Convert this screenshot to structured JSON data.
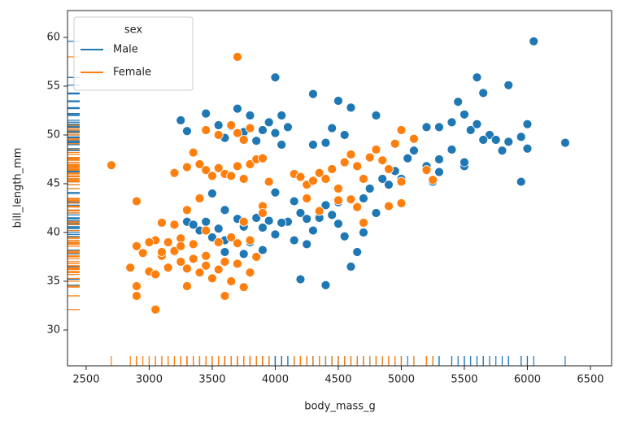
{
  "chart_data": {
    "type": "scatter",
    "x_label": "body_mass_g",
    "y_label": "bill_length_mm",
    "xlim": [
      2352,
      6668
    ],
    "ylim": [
      26.33,
      62.75
    ],
    "xticks": [
      2500,
      3000,
      3500,
      4000,
      4500,
      5000,
      5500,
      6000,
      6500
    ],
    "yticks": [
      30,
      35,
      40,
      45,
      50,
      55,
      60
    ],
    "grid": false,
    "rug": true,
    "legend_title": "sex",
    "legend_position": "upper left",
    "series": [
      {
        "name": "Male",
        "color": "#1f77b4",
        "x": [
          6050,
          6300,
          5600,
          5650,
          5850,
          4000,
          4300,
          4500,
          4600,
          3700,
          3450,
          3250,
          3550,
          3650,
          3800,
          3950,
          4050,
          4100,
          3900,
          4000,
          4300,
          4400,
          4450,
          4550,
          4800,
          3300,
          3600,
          3750,
          3850,
          4050,
          5200,
          5300,
          5400,
          5500,
          5450,
          5550,
          5600,
          5700,
          5750,
          5800,
          5850,
          5950,
          6000,
          6000,
          5950,
          5500,
          5300,
          5200,
          5050,
          5100,
          5400,
          5500,
          5650,
          5300,
          5000,
          4950,
          5250,
          4900,
          3700,
          3750,
          3800,
          3850,
          3900,
          3950,
          4000,
          4050,
          4100,
          4150,
          4200,
          4250,
          4300,
          4350,
          4400,
          4450,
          4500,
          4550,
          4600,
          4650,
          4700,
          4200,
          4400,
          4150,
          4000,
          3450,
          3550,
          3600,
          3500,
          3400,
          3300,
          3750,
          3600,
          3900,
          3500,
          3350,
          3600,
          4050,
          4250,
          4500,
          4750,
          4800,
          4850,
          4700
        ],
        "y": [
          59.6,
          49.2,
          55.9,
          54.3,
          55.1,
          55.9,
          54.2,
          53.5,
          52.8,
          52.7,
          52.2,
          51.5,
          51.0,
          50.9,
          52.0,
          51.3,
          52.0,
          50.8,
          50.5,
          50.2,
          49.0,
          49.2,
          50.7,
          50.0,
          52.0,
          50.4,
          49.7,
          50.3,
          49.4,
          49.0,
          50.8,
          50.8,
          51.3,
          52.1,
          53.4,
          50.5,
          51.1,
          50.0,
          49.5,
          48.4,
          49.3,
          49.8,
          51.1,
          48.6,
          45.2,
          46.8,
          46.2,
          46.8,
          47.6,
          48.4,
          48.5,
          47.2,
          49.5,
          47.5,
          45.5,
          46.3,
          45.2,
          44.9,
          41.4,
          40.6,
          39.0,
          41.5,
          40.5,
          41.2,
          39.8,
          41.0,
          41.1,
          43.2,
          42.0,
          38.8,
          40.2,
          41.5,
          42.8,
          41.8,
          43.1,
          39.6,
          36.5,
          38.0,
          40.0,
          35.2,
          34.6,
          39.2,
          44.1,
          41.1,
          40.4,
          39.2,
          39.5,
          40.2,
          41.1,
          37.8,
          38.0,
          38.2,
          44.0,
          40.8,
          42.3,
          41.0,
          41.4,
          40.9,
          44.5,
          42.0,
          45.5,
          43.5
        ]
      },
      {
        "name": "Female",
        "color": "#ff7f0e",
        "x": [
          3700,
          2700,
          2900,
          3450,
          3550,
          3650,
          3700,
          3750,
          3800,
          3350,
          3300,
          3200,
          3400,
          3450,
          3500,
          3550,
          3600,
          3650,
          3700,
          3750,
          3800,
          3850,
          3900,
          3950,
          4150,
          4200,
          4250,
          4300,
          4350,
          4400,
          4450,
          4500,
          4550,
          4600,
          4650,
          4700,
          4750,
          4800,
          4850,
          4900,
          4950,
          5000,
          5100,
          5200,
          5250,
          5000,
          4900,
          5000,
          4700,
          4650,
          4600,
          4500,
          4350,
          4250,
          3900,
          3400,
          3100,
          3150,
          3050,
          3000,
          3050,
          3100,
          3150,
          3200,
          3250,
          3300,
          3350,
          3400,
          3450,
          3500,
          3550,
          3600,
          3650,
          3700,
          3750,
          3800,
          3850,
          3300,
          3600,
          3050,
          2900,
          2900,
          2850,
          2900,
          2950,
          3000,
          3100,
          3200,
          3250,
          3350,
          3450,
          3550,
          3650,
          3700,
          3800,
          3900,
          3750,
          3300,
          3450,
          3250
        ],
        "y": [
          58.0,
          46.9,
          43.2,
          50.5,
          50.0,
          51.0,
          50.2,
          49.5,
          50.7,
          48.2,
          46.7,
          46.1,
          47.0,
          46.4,
          45.8,
          46.6,
          46.0,
          45.8,
          46.8,
          45.5,
          47.0,
          47.5,
          47.6,
          45.2,
          46.0,
          45.7,
          44.9,
          45.3,
          46.1,
          45.5,
          46.5,
          44.5,
          47.2,
          48.0,
          46.8,
          45.5,
          47.7,
          48.5,
          47.4,
          46.5,
          49.1,
          50.5,
          49.6,
          46.4,
          45.4,
          45.2,
          42.7,
          43.0,
          41.0,
          42.6,
          43.4,
          43.3,
          42.2,
          43.5,
          42.7,
          43.5,
          41.0,
          39.0,
          39.2,
          36.0,
          35.7,
          37.6,
          36.4,
          38.1,
          37.0,
          36.3,
          37.3,
          35.9,
          36.6,
          35.3,
          36.2,
          37.0,
          35.0,
          36.8,
          34.4,
          35.9,
          37.5,
          34.5,
          33.5,
          32.1,
          33.5,
          34.5,
          36.4,
          38.6,
          37.9,
          39.0,
          38.0,
          40.8,
          39.4,
          38.8,
          40.2,
          39.0,
          39.5,
          38.9,
          39.2,
          42.0,
          41.1,
          42.3,
          37.6,
          38.6
        ]
      }
    ]
  }
}
